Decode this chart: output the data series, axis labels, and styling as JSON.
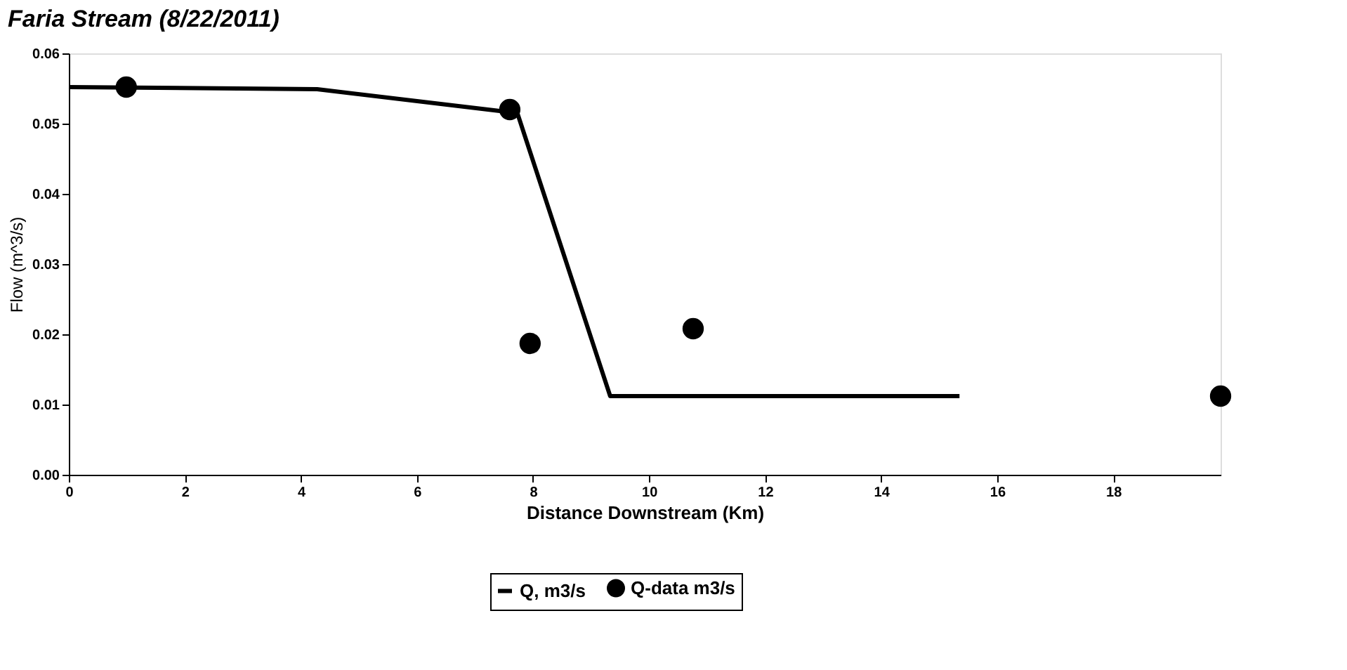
{
  "chart_data": {
    "type": "line",
    "title": "Faria  Stream (8/22/2011)",
    "xlabel": "Distance Downstream (Km)",
    "ylabel": "Flow (m^3/s)",
    "xlim": [
      0,
      19.85
    ],
    "xticks": [
      0,
      2,
      4,
      6,
      8,
      10,
      12,
      14,
      16,
      18
    ],
    "ylim": [
      0,
      0.06
    ],
    "yticks": [
      {
        "value": 0,
        "label": "0.00"
      },
      {
        "value": 0.01,
        "label": "0.01"
      },
      {
        "value": 0.02,
        "label": "0.02"
      },
      {
        "value": 0.03,
        "label": "0.03"
      },
      {
        "value": 0.04,
        "label": "0.04"
      },
      {
        "value": 0.05,
        "label": "0.05"
      },
      {
        "value": 0.06,
        "label": "0.06"
      }
    ],
    "grid": false,
    "legend": "bottom",
    "series": [
      {
        "name": "Q, m3/s",
        "color": "#000000",
        "marker": "none",
        "line_style": "solid",
        "x": [
          0,
          4.28,
          7.73,
          9.33,
          15.35
        ],
        "values": [
          0.0552,
          0.0549,
          0.0515,
          0.0112,
          0.0112
        ]
      },
      {
        "name": "Q-data m3/s",
        "type": "scatter",
        "color": "#000000",
        "marker": "circle",
        "x": [
          0.99,
          7.6,
          7.95,
          10.76,
          19.85
        ],
        "values": [
          0.0552,
          0.052,
          0.0187,
          0.0208,
          0.0112
        ]
      }
    ]
  }
}
